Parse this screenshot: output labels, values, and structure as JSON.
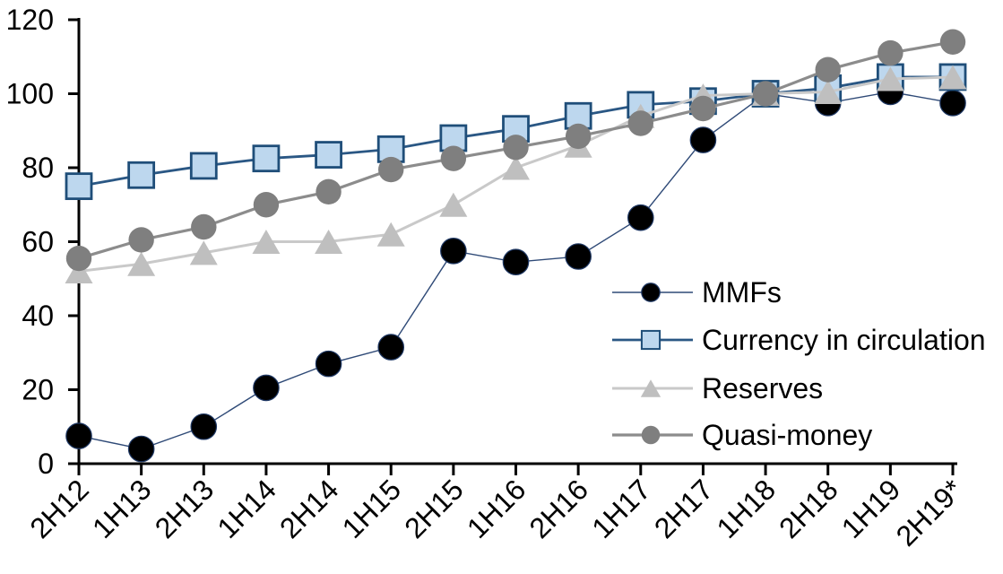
{
  "chart_data": {
    "type": "line",
    "title": "",
    "xlabel": "",
    "ylabel": "",
    "ylim": [
      0,
      120
    ],
    "ytick_step": 20,
    "ytick_labels": [
      "0",
      "20",
      "40",
      "60",
      "80",
      "100",
      "120"
    ],
    "grid": false,
    "axis_color": "#000000",
    "legend_position": "inside-right",
    "categories": [
      "2H12",
      "1H13",
      "2H13",
      "1H14",
      "2H14",
      "1H15",
      "2H15",
      "1H16",
      "2H16",
      "1H17",
      "2H17",
      "1H18",
      "2H18",
      "1H19",
      "2H19*"
    ],
    "series": [
      {
        "name": "MMFs",
        "marker": "circle",
        "marker_fill": "#000000",
        "marker_stroke": "#1F3864",
        "line_color": "#2F4A77",
        "line_width": 1.4,
        "values": [
          7.5,
          4,
          10,
          20.5,
          27,
          31.5,
          57.5,
          54.5,
          56,
          66.5,
          87.5,
          100,
          97.5,
          100.5,
          97.5
        ]
      },
      {
        "name": "Currency in circulation",
        "marker": "square",
        "marker_fill": "#BDD7EE",
        "marker_stroke": "#1F4E79",
        "line_color": "#2A5784",
        "line_width": 2.8,
        "values": [
          75,
          78,
          80.5,
          82.5,
          83.5,
          85,
          88,
          90.5,
          94,
          97,
          98,
          100,
          101.5,
          104.5,
          104.5
        ]
      },
      {
        "name": "Reserves",
        "marker": "triangle",
        "marker_fill": "#BFBFBF",
        "marker_stroke": "none",
        "line_color": "#C9C9C9",
        "line_width": 3,
        "values": [
          52,
          54,
          57,
          60,
          60,
          62,
          70,
          80,
          86,
          94,
          99.5,
          100,
          100.5,
          104,
          104.5
        ]
      },
      {
        "name": "Quasi-money",
        "marker": "circle",
        "marker_fill": "#7F7F7F",
        "marker_stroke": "none",
        "line_color": "#8C8C8C",
        "line_width": 3.2,
        "values": [
          55.5,
          60.5,
          64,
          70,
          73.5,
          79.5,
          82.5,
          85.5,
          88.5,
          92,
          96,
          100,
          106.5,
          111,
          114
        ]
      }
    ]
  }
}
